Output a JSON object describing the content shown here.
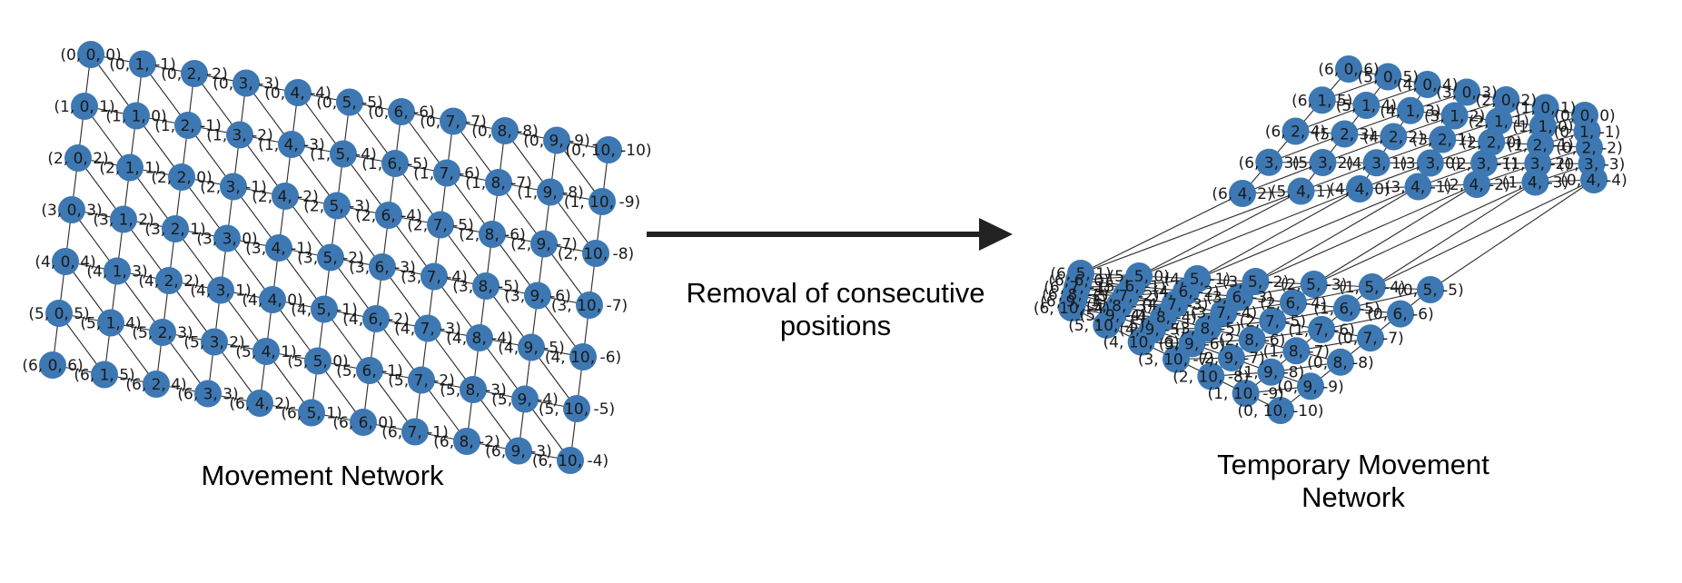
{
  "left_graph": {
    "caption": "Movement Network",
    "grid": {
      "rows": 7,
      "cols": 11
    },
    "label_format": "({row}, {col}, {diff})"
  },
  "right_graph": {
    "caption_line1": "Temporary Movement",
    "caption_line2": "Network",
    "label_format": "({row}, {col}, {diff})"
  },
  "arrow": {
    "label_line1": "Removal of consecutive",
    "label_line2": "positions"
  },
  "colors": {
    "node": "#3d78b3",
    "edge": "#2b2b2b",
    "arrow": "#222222",
    "text": "#1a1a1a"
  }
}
